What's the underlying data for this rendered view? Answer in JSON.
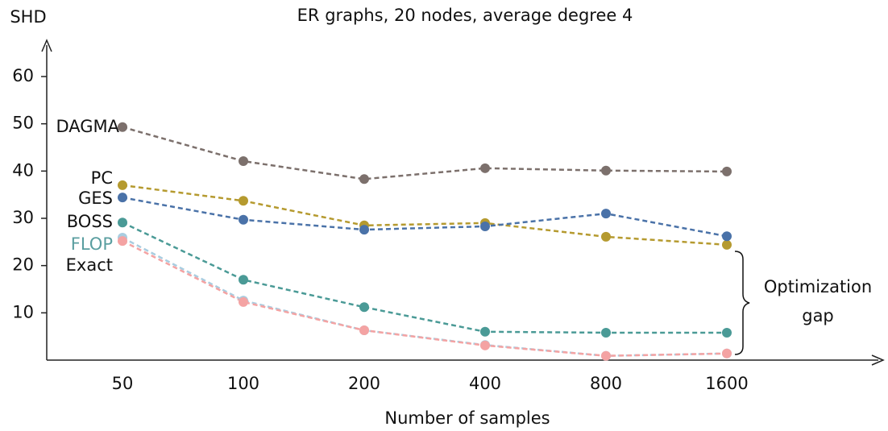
{
  "chart_data": {
    "type": "line",
    "title": "ER graphs, 20 nodes, average degree 4",
    "y_label": "SHD",
    "x_label": "Number of samples",
    "categories": [
      "50",
      "100",
      "200",
      "400",
      "800",
      "1600"
    ],
    "ylim": [
      0,
      60
    ],
    "yticks": [
      10,
      20,
      30,
      40,
      50,
      60
    ],
    "series": [
      {
        "name": "DAGMA",
        "color": "#7c706c",
        "values": [
          49.3,
          42.1,
          38.3,
          40.6,
          40.1,
          39.9
        ]
      },
      {
        "name": "PC",
        "color": "#b59a2f",
        "values": [
          37.0,
          33.7,
          28.5,
          29.0,
          26.1,
          24.4
        ]
      },
      {
        "name": "GES",
        "color": "#4a72a8",
        "values": [
          34.4,
          29.7,
          27.6,
          28.3,
          31.0,
          26.2
        ]
      },
      {
        "name": "BOSS",
        "color": "#4a9a96",
        "values": [
          29.1,
          17.0,
          11.2,
          6.0,
          5.8,
          5.8
        ]
      },
      {
        "name": "FLOP",
        "color": "#a9cde0",
        "label_color": "#5a9ea0",
        "values": [
          25.9,
          12.6,
          6.3,
          3.2,
          0.9,
          1.4
        ]
      },
      {
        "name": "Exact",
        "color": "#f4a3a3",
        "values": [
          25.2,
          12.3,
          6.3,
          3.1,
          0.9,
          1.4
        ]
      }
    ],
    "annotation": [
      "Optimization",
      "gap"
    ]
  }
}
